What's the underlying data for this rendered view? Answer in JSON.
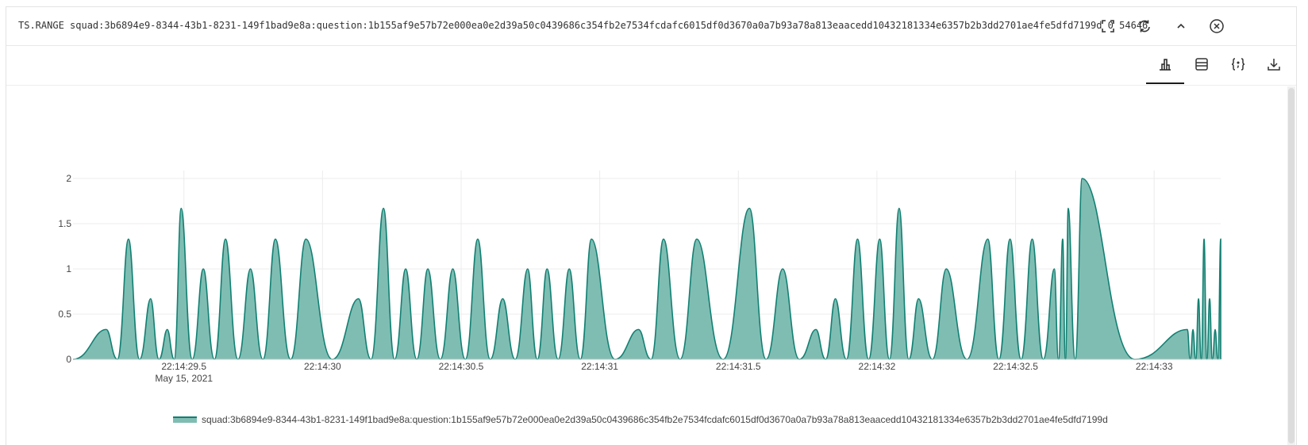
{
  "command": {
    "text": "TS.RANGE squad:3b6894e9-8344-43b1-8231-149f1bad9e8a:question:1b155af9e57b72e000ea0e2d39a50c0439686c354fb2e7534fcdafc6015df0d3670a0a7b93a78a813eaacedd10432181334e6357b2b3dd2701ae4fe5dfd7199d 0 54646"
  },
  "toolbar": {
    "icons": [
      "fullscreen-icon",
      "refresh-icon",
      "collapse-icon",
      "close-icon"
    ]
  },
  "view_tabs": {
    "icons": [
      "chart-view-icon",
      "table-view-icon",
      "json-view-icon",
      "download-icon"
    ],
    "active": "chart-view-icon"
  },
  "colors": {
    "series_fill": "#7fbdb3",
    "series_line": "#128072",
    "grid": "#ececec"
  },
  "chart_data": {
    "type": "area",
    "xlabel": "",
    "ylabel": "",
    "ylim": [
      0,
      2
    ],
    "grid": true,
    "legend_position": "bottom",
    "x_ticks": [
      "22:14:29.5",
      "22:14:30",
      "22:14:30.5",
      "22:14:31",
      "22:14:31.5",
      "22:14:32",
      "22:14:32.5",
      "22:14:33"
    ],
    "x_tick_sublabel": "May 15, 2021",
    "y_ticks": [
      "0",
      "0.5",
      "1",
      "1.5",
      "2"
    ],
    "x_unit": "time (22:14:xx.x, May 15, 2021)",
    "series": [
      {
        "name": "squad:3b6894e9-8344-43b1-8231-149f1bad9e8a:question:1b155af9e57b72e000ea0e2d39a50c0439686c354fb2e7534fcdafc6015df0d3670a0a7b93a78a813eaacedd10432181334e6357b2b3dd2701ae4fe5dfd7199d",
        "peaks": [
          {
            "time": "22:14:29.22",
            "value": 0.33
          },
          {
            "time": "22:14:29.30",
            "value": 1.33
          },
          {
            "time": "22:14:29.38",
            "value": 0.67
          },
          {
            "time": "22:14:29.44",
            "value": 0.33
          },
          {
            "time": "22:14:29.49",
            "value": 1.67
          },
          {
            "time": "22:14:29.57",
            "value": 1.0
          },
          {
            "time": "22:14:29.65",
            "value": 1.33
          },
          {
            "time": "22:14:29.74",
            "value": 1.0
          },
          {
            "time": "22:14:29.83",
            "value": 1.33
          },
          {
            "time": "22:14:29.94",
            "value": 1.33
          },
          {
            "time": "22:14:30.13",
            "value": 0.67
          },
          {
            "time": "22:14:30.22",
            "value": 1.67
          },
          {
            "time": "22:14:30.30",
            "value": 1.0
          },
          {
            "time": "22:14:30.38",
            "value": 1.0
          },
          {
            "time": "22:14:30.47",
            "value": 1.0
          },
          {
            "time": "22:14:30.56",
            "value": 1.33
          },
          {
            "time": "22:14:30.65",
            "value": 0.67
          },
          {
            "time": "22:14:30.74",
            "value": 1.0
          },
          {
            "time": "22:14:30.81",
            "value": 1.0
          },
          {
            "time": "22:14:30.89",
            "value": 1.0
          },
          {
            "time": "22:14:30.97",
            "value": 1.33
          },
          {
            "time": "22:14:31.14",
            "value": 0.33
          },
          {
            "time": "22:14:31.23",
            "value": 1.33
          },
          {
            "time": "22:14:31.35",
            "value": 1.33
          },
          {
            "time": "22:14:31.54",
            "value": 1.67
          },
          {
            "time": "22:14:31.66",
            "value": 1.0
          },
          {
            "time": "22:14:31.78",
            "value": 0.33
          },
          {
            "time": "22:14:31.85",
            "value": 0.67
          },
          {
            "time": "22:14:31.93",
            "value": 1.33
          },
          {
            "time": "22:14:32.01",
            "value": 1.33
          },
          {
            "time": "22:14:32.08",
            "value": 1.67
          },
          {
            "time": "22:14:32.15",
            "value": 0.67
          },
          {
            "time": "22:14:32.25",
            "value": 1.0
          },
          {
            "time": "22:14:32.40",
            "value": 1.33
          },
          {
            "time": "22:14:32.48",
            "value": 1.33
          },
          {
            "time": "22:14:32.56",
            "value": 1.33
          },
          {
            "time": "22:14:32.64",
            "value": 1.0
          },
          {
            "time": "22:14:32.67",
            "value": 1.33
          },
          {
            "time": "22:14:32.69",
            "value": 1.67
          },
          {
            "time": "22:14:32.74",
            "value": 2.0
          },
          {
            "time": "22:14:33.12",
            "value": 0.33
          },
          {
            "time": "22:14:33.14",
            "value": 0.33
          },
          {
            "time": "22:14:33.16",
            "value": 0.67
          },
          {
            "time": "22:14:33.18",
            "value": 1.33
          },
          {
            "time": "22:14:33.20",
            "value": 0.67
          },
          {
            "time": "22:14:33.22",
            "value": 0.33
          },
          {
            "time": "22:14:33.24",
            "value": 1.33
          }
        ]
      }
    ]
  }
}
